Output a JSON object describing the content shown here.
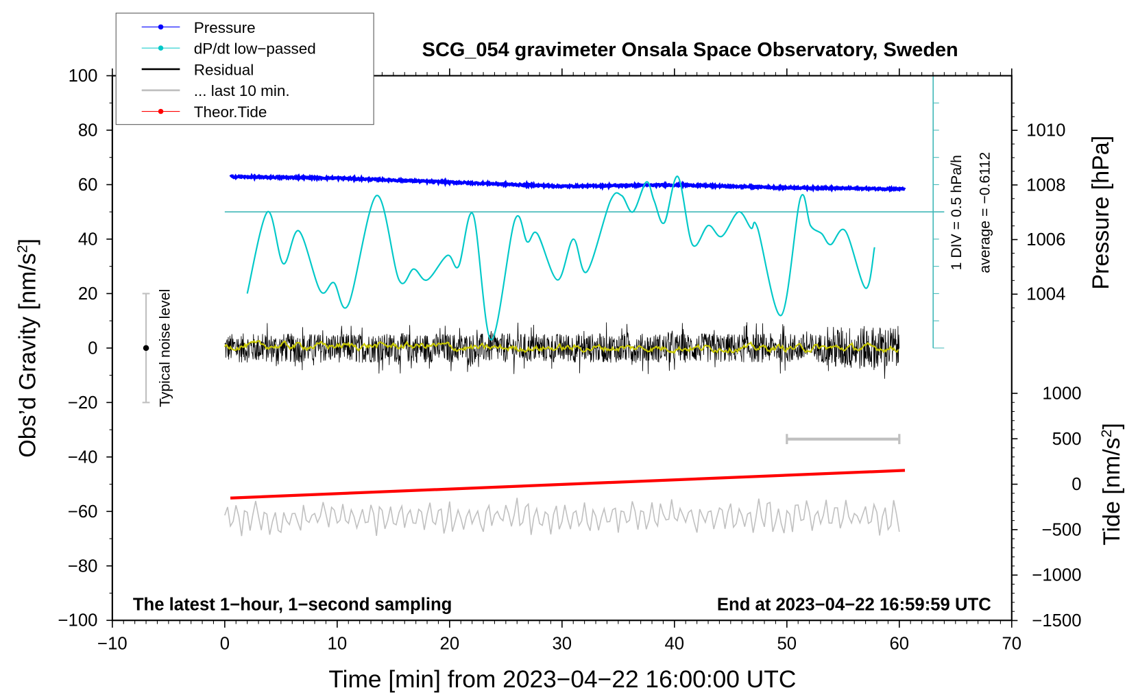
{
  "chart_data": {
    "type": "line",
    "title": "SCG_054 gravimeter Onsala Space Observatory, Sweden",
    "xlabel": "Time [min] from 2023−04−22 16:00:00 UTC",
    "ylabel_left": "Obs’d Gravity [nm/s²]",
    "ylabel_right_pressure": "Pressure [hPa]",
    "ylabel_right_tide": "Tide [nm/s²]",
    "xlim": [
      -10,
      70
    ],
    "ylim": [
      -100,
      100
    ],
    "pressure_lim_visible": [
      1003,
      1011
    ],
    "tide_lim": [
      -1500,
      1000
    ],
    "x_ticks": [
      "−10",
      "0",
      "10",
      "20",
      "30",
      "40",
      "50",
      "60",
      "70"
    ],
    "x_tick_values": [
      -10,
      0,
      10,
      20,
      30,
      40,
      50,
      60,
      70
    ],
    "y_ticks": [
      "100",
      "80",
      "60",
      "40",
      "20",
      "0",
      "−20",
      "−40",
      "−60",
      "−80",
      "−100"
    ],
    "y_tick_values": [
      100,
      80,
      60,
      40,
      20,
      0,
      -20,
      -40,
      -60,
      -80,
      -100
    ],
    "pressure_ticks": [
      "1010",
      "1008",
      "1006",
      "1004"
    ],
    "pressure_tick_values": [
      1010,
      1008,
      1006,
      1004
    ],
    "tide_ticks": [
      "1000",
      "500",
      "0",
      "−500",
      "−1000",
      "−1500"
    ],
    "tide_tick_values": [
      1000,
      500,
      0,
      -500,
      -1000,
      -1500
    ],
    "legend": {
      "placement": "top-left",
      "entries": [
        {
          "label": "Pressure",
          "color": "#0000ff",
          "marker": true
        },
        {
          "label": "dP/dt low−passed",
          "color": "#00c8c8",
          "marker": true
        },
        {
          "label": "Residual",
          "color": "#000000",
          "marker": false
        },
        {
          "label": "... last 10 min.",
          "color": "#c0c0c0",
          "marker": false
        },
        {
          "label": "Theor.Tide",
          "color": "#ff0000",
          "marker": true
        }
      ]
    },
    "annotations": {
      "bottom_left": "The latest 1−hour, 1−second sampling",
      "bottom_right": "End at 2023−04−22 16:59:59 UTC",
      "noise_label": "Typical noise level",
      "div_label": "1 DIV = 0.5 hPa/h",
      "average_label": "average = −0.6112"
    },
    "series": [
      {
        "name": "Pressure",
        "unit": "hPa",
        "color": "#0000ff",
        "x": [
          0.5,
          10,
          20,
          30,
          40,
          50,
          60.5
        ],
        "y": [
          1008.3,
          1008.25,
          1008.1,
          1007.95,
          1008.0,
          1007.9,
          1007.85
        ]
      },
      {
        "name": "dP/dt low-passed",
        "unit": "plotted on gravity scale (50 = average, 10 = 1 DIV)",
        "color": "#00c8c8",
        "x": [
          2,
          3.8,
          5.2,
          6.6,
          8.5,
          9.7,
          11,
          13.5,
          15.5,
          16.8,
          18,
          19.8,
          20.8,
          22.1,
          23.7,
          25.8,
          26.9,
          27.8,
          29.6,
          31,
          32.2,
          34.3,
          35.3,
          36.3,
          37.5,
          38.2,
          39.1,
          40.3,
          41.6,
          43,
          44.2,
          45.7,
          46.8,
          47.4,
          49.5,
          51.2,
          52.1,
          53.1,
          53.9,
          55.2,
          57,
          57.8
        ],
        "y": [
          20,
          50,
          31,
          43,
          21,
          24,
          16,
          56,
          25,
          29,
          25,
          34,
          30,
          49,
          3,
          47,
          39,
          42,
          25,
          40,
          28,
          54,
          56,
          50,
          61,
          54,
          46,
          63,
          38,
          45,
          41,
          50,
          44,
          44,
          12,
          55,
          45,
          42,
          38,
          43,
          22,
          37
        ]
      },
      {
        "name": "Residual",
        "unit": "nm/s²",
        "color": "#000000",
        "mean": 0,
        "amplitude": 6,
        "x_range": [
          0,
          60
        ]
      },
      {
        "name": "Residual smoothed",
        "color": "#c8c800",
        "mean": 0,
        "amplitude": 1.5,
        "x_range": [
          0,
          60
        ]
      },
      {
        "name": "last 10 min.",
        "unit": "nm/s²",
        "color": "#c0c0c0",
        "mean": -62,
        "amplitude": 6,
        "x_range": [
          0,
          60
        ]
      },
      {
        "name": "Theor.Tide",
        "unit": "nm/s²",
        "color": "#ff0000",
        "x": [
          0.5,
          60.5
        ],
        "y": [
          -152,
          152
        ]
      }
    ],
    "average_line_value": 50,
    "last10_marker_range": [
      50,
      60
    ],
    "noise_level": {
      "x": -7,
      "center": 0,
      "range": [
        -20,
        20
      ]
    }
  }
}
